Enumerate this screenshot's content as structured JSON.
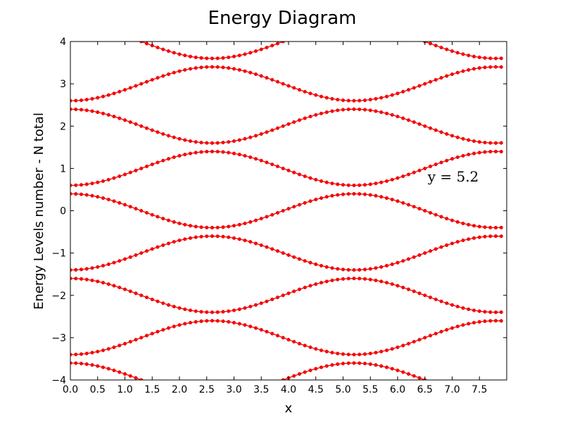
{
  "chart_data": {
    "type": "scatter",
    "title": "Energy Diagram",
    "xlabel": "x",
    "ylabel": "Energy Levels number - N total",
    "xlim": [
      0,
      8
    ],
    "ylim": [
      -4,
      4
    ],
    "x_ticks": [
      "0.0",
      "0.5",
      "1.0",
      "1.5",
      "2.0",
      "2.5",
      "3.0",
      "3.5",
      "4.0",
      "4.5",
      "5.0",
      "5.5",
      "6.0",
      "6.5",
      "7.0",
      "7.5"
    ],
    "y_ticks": [
      "4",
      "3",
      "2",
      "1",
      "0",
      "−1",
      "−2",
      "−3",
      "−4"
    ],
    "annotation": "y = 5.2",
    "grid": false,
    "marker_color": "#ff0000",
    "marker_edge_color": "#cc0000",
    "line_color": "#ff0000",
    "series_description": "Bands E_n(x) = n + 0.4*cos(2*pi*x/5.2 + pi*n), n = -4..4, sampled every 0.1 from x = 0.0 to 7.9",
    "x_points": {
      "start": 0.0,
      "stop": 7.9,
      "step": 0.1
    },
    "period": 5.2,
    "amplitude": 0.4,
    "levels": [
      -4,
      -3,
      -2,
      -1,
      0,
      1,
      2,
      3,
      4
    ]
  }
}
